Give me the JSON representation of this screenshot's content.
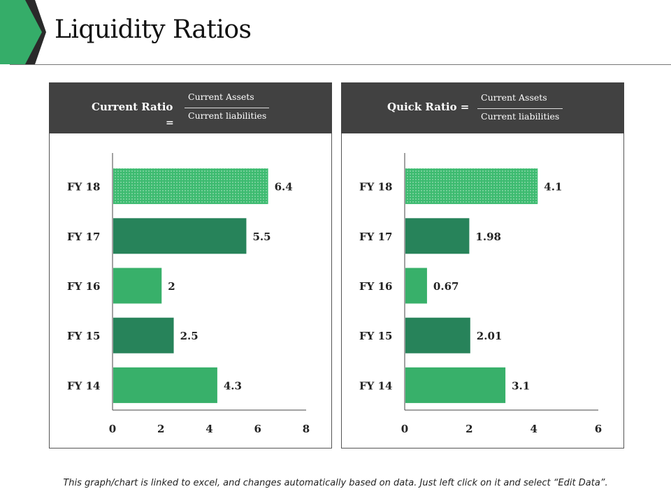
{
  "title": "Liquidity Ratios",
  "colors": {
    "accent": "#35ad69",
    "dark_green": "#27835a",
    "header_bg": "#414141"
  },
  "panels": [
    {
      "ratio_name": "Current Ratio",
      "equals": "=",
      "numerator": "Current Assets",
      "denominator": "Current liabilities"
    },
    {
      "ratio_name": "Quick Ratio =",
      "numerator": "Current Assets",
      "denominator": "Current liabilities"
    }
  ],
  "chart_data": [
    {
      "type": "bar",
      "orientation": "horizontal",
      "categories": [
        "FY 18",
        "FY 17",
        "FY 16",
        "FY 15",
        "FY 14"
      ],
      "values": [
        6.4,
        5.5,
        2,
        2.5,
        4.3
      ],
      "value_labels": [
        "6.4",
        "5.5",
        "2",
        "2.5",
        "4.3"
      ],
      "xlim": [
        0,
        8
      ],
      "xticks": [
        "0",
        "2",
        "4",
        "6",
        "8"
      ],
      "bar_colors": [
        "#3dbb70",
        "#27835a",
        "#38b06a",
        "#27835a",
        "#38b06a"
      ],
      "patterned": [
        true,
        false,
        false,
        false,
        false
      ],
      "grid": false
    },
    {
      "type": "bar",
      "orientation": "horizontal",
      "categories": [
        "FY 18",
        "FY 17",
        "FY 16",
        "FY 15",
        "FY 14"
      ],
      "values": [
        4.1,
        1.98,
        0.67,
        2.01,
        3.1
      ],
      "value_labels": [
        "4.1",
        "1.98",
        "0.67",
        "2.01",
        "3.1"
      ],
      "xlim": [
        0,
        6
      ],
      "xticks": [
        "0",
        "2",
        "4",
        "6"
      ],
      "bar_colors": [
        "#3dbb70",
        "#27835a",
        "#38b06a",
        "#27835a",
        "#38b06a"
      ],
      "patterned": [
        true,
        false,
        false,
        false,
        false
      ],
      "grid": false
    }
  ],
  "footer": "This graph/chart is linked to excel, and changes automatically based on data. Just left click on it and select “Edit Data”."
}
